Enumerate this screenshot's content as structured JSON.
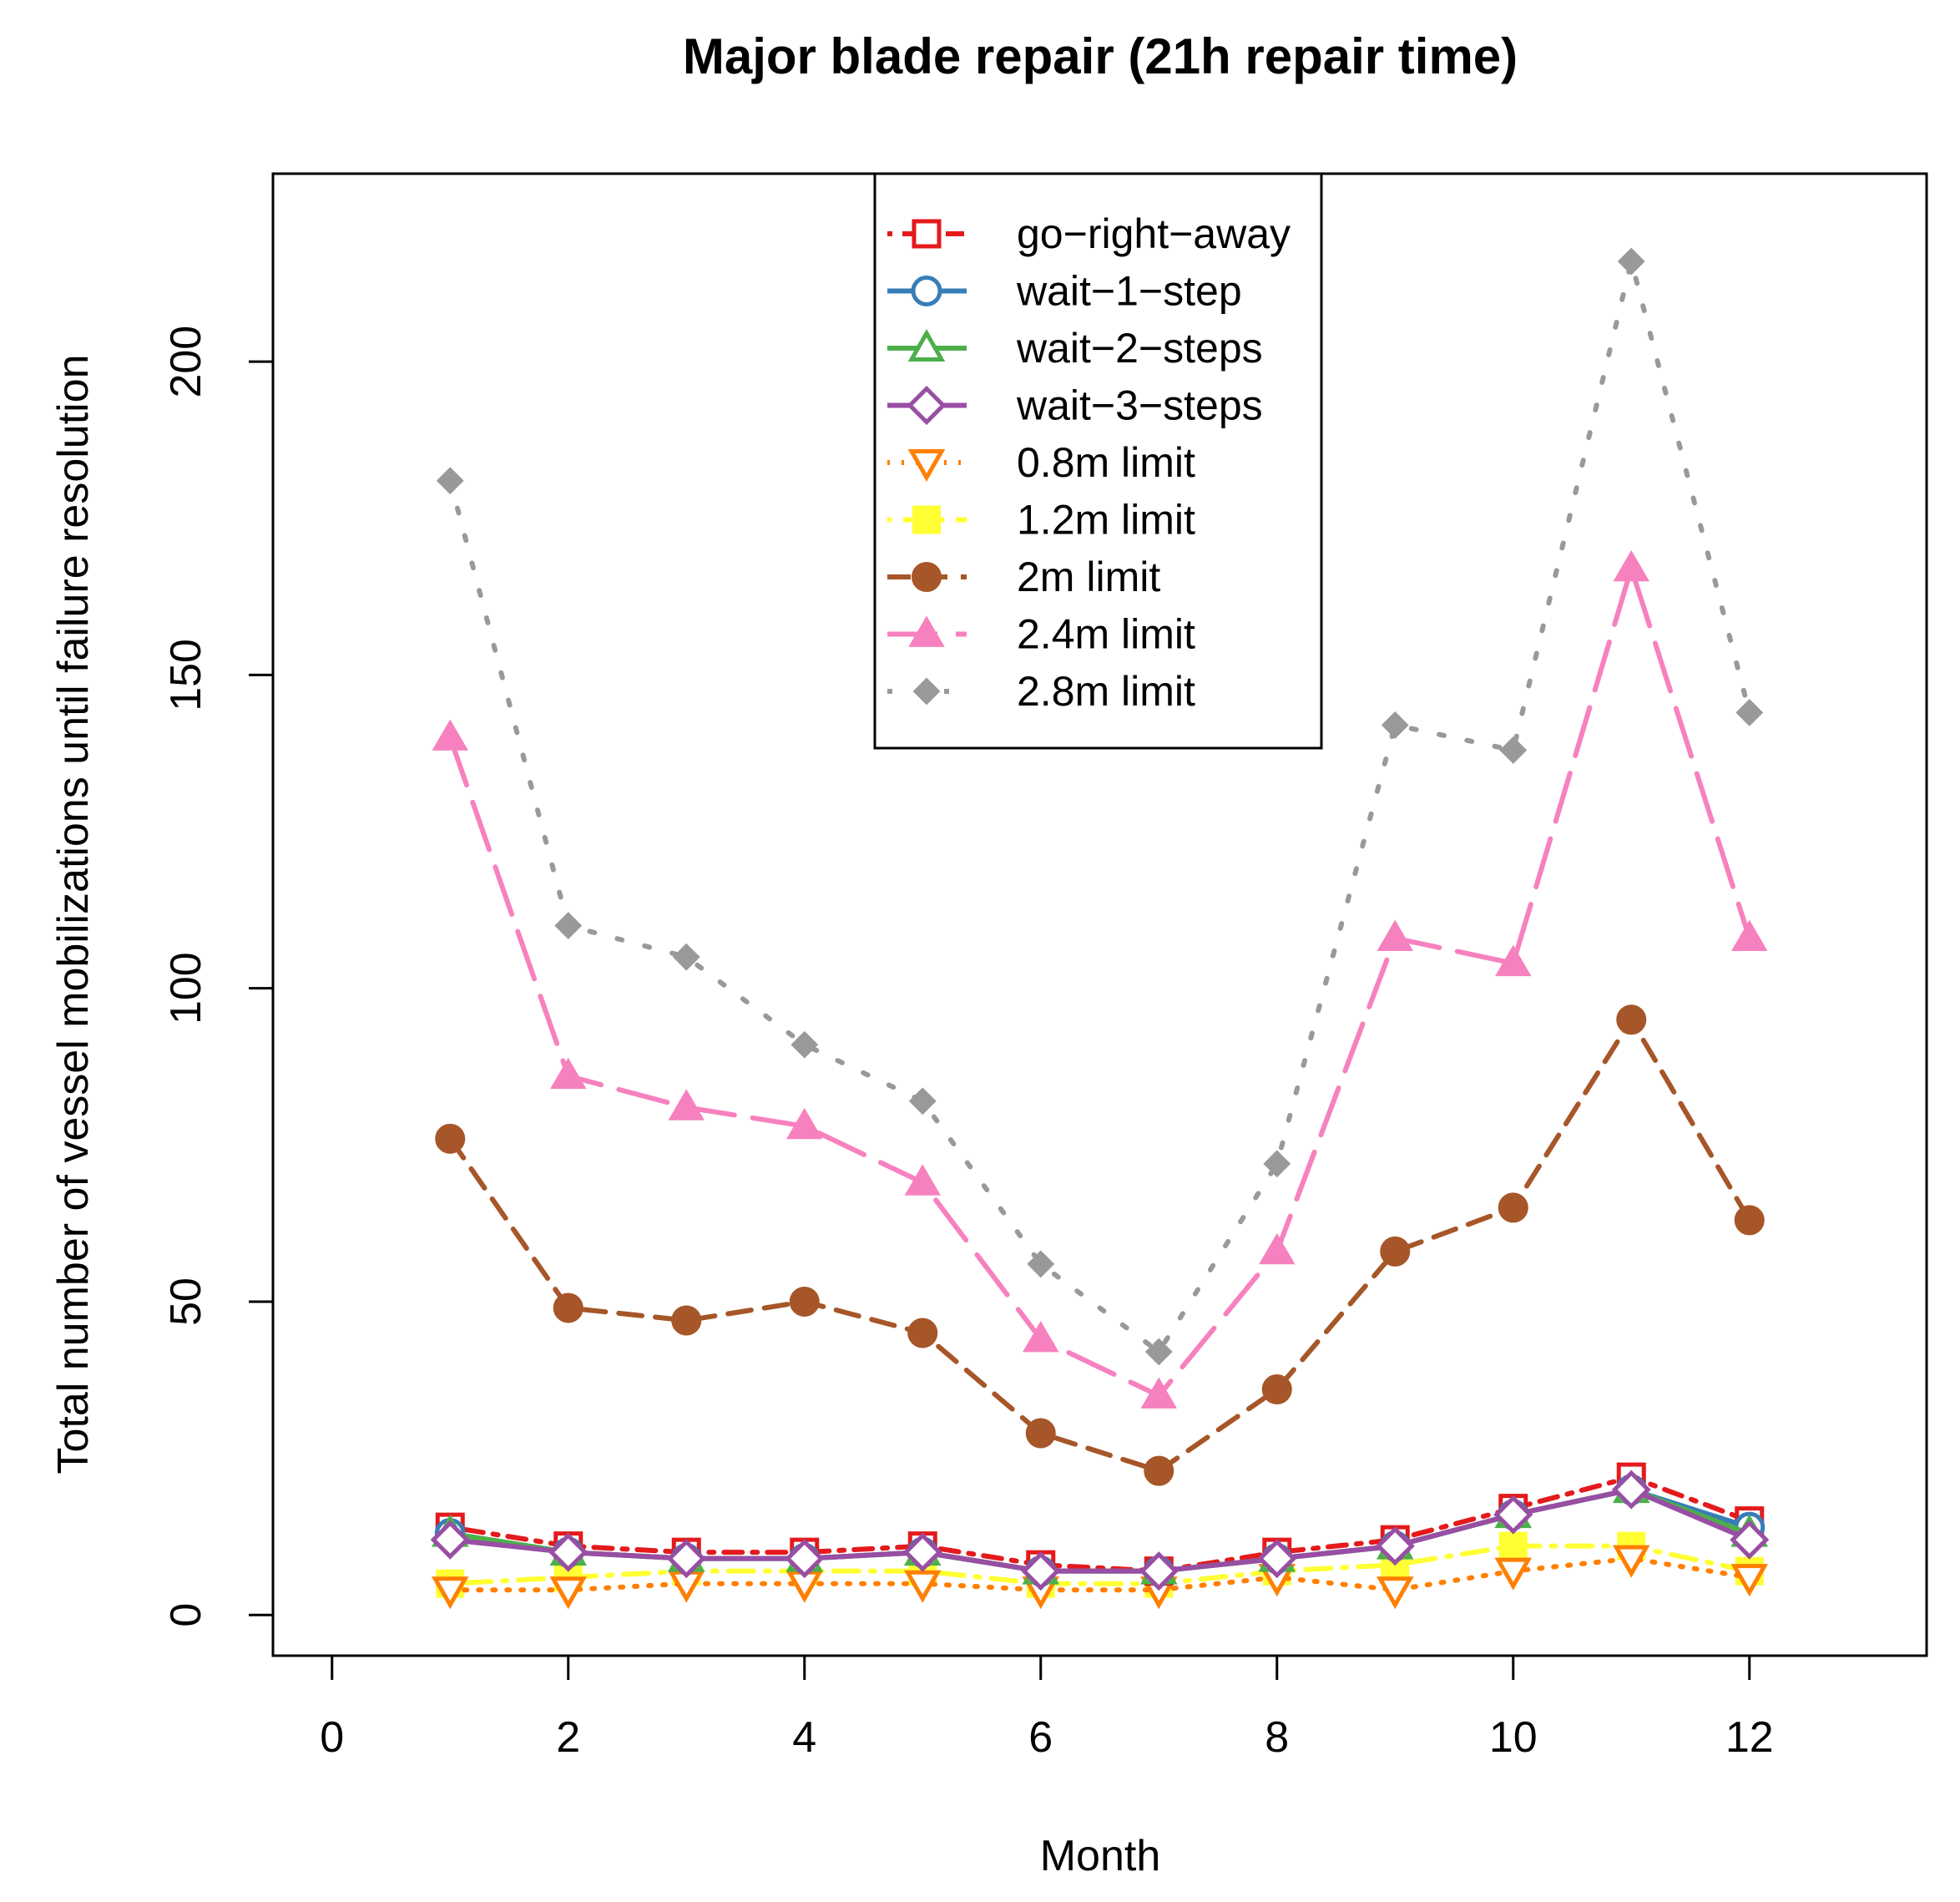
{
  "chart_data": {
    "type": "line",
    "title": "Major blade repair (21h repair time)",
    "xlabel": "Month",
    "ylabel": "Total number of vessel mobilizations until failure resolution",
    "xlim": [
      -0.5,
      13.5
    ],
    "ylim": [
      -6.5,
      230
    ],
    "xticks": [
      "0",
      "2",
      "4",
      "6",
      "8",
      "10",
      "12"
    ],
    "yticks": [
      "0",
      "50",
      "100",
      "150",
      "200"
    ],
    "legend_position": "top-center",
    "x": [
      1,
      2,
      3,
      4,
      5,
      6,
      7,
      8,
      9,
      10,
      11,
      12
    ],
    "series": [
      {
        "name": "go−right−away",
        "color": "#e41a1c",
        "marker": "square-open",
        "dash": "dotted-dash",
        "values": [
          14,
          11,
          10,
          10,
          11,
          8,
          7,
          10,
          12,
          17,
          22,
          15
        ]
      },
      {
        "name": "wait−1−step",
        "color": "#377eb8",
        "marker": "circle-open",
        "dash": "solid",
        "values": [
          13,
          10,
          9,
          9,
          10,
          7,
          7,
          9,
          11,
          16,
          20,
          14
        ]
      },
      {
        "name": "wait−2−steps",
        "color": "#4daf4a",
        "marker": "triangle-open",
        "dash": "solid",
        "values": [
          13,
          10,
          9,
          9,
          10,
          7,
          7,
          9,
          11,
          16,
          20,
          13
        ]
      },
      {
        "name": "wait−3−steps",
        "color": "#984ea3",
        "marker": "diamond-open",
        "dash": "solid",
        "values": [
          12,
          10,
          9,
          9,
          10,
          7,
          7,
          9,
          11,
          16,
          20,
          12
        ]
      },
      {
        "name": "0.8m limit",
        "color": "#ff7f00",
        "marker": "triangle-down-open",
        "dash": "dotted",
        "values": [
          4,
          4,
          5,
          5,
          5,
          4,
          4,
          6,
          4,
          7,
          9,
          6
        ]
      },
      {
        "name": "1.2m limit",
        "color": "#ffff33",
        "marker": "square-filled",
        "dash": "dot-dash",
        "values": [
          5,
          6,
          7,
          7,
          7,
          5,
          5,
          7,
          8,
          11,
          11,
          7
        ]
      },
      {
        "name": "2m limit",
        "color": "#a65628",
        "marker": "circle-filled",
        "dash": "dashed",
        "values": [
          76,
          49,
          47,
          50,
          45,
          29,
          23,
          36,
          58,
          65,
          95,
          63
        ]
      },
      {
        "name": "2.4m limit",
        "color": "#f781bf",
        "marker": "triangle-filled",
        "dash": "long-dash",
        "values": [
          140,
          86,
          81,
          78,
          69,
          44,
          35,
          58,
          108,
          104,
          167,
          108
        ]
      },
      {
        "name": "2.8m limit",
        "color": "#999999",
        "marker": "diamond-filled",
        "dash": "sparse-dotted",
        "values": [
          181,
          110,
          105,
          91,
          82,
          56,
          42,
          72,
          142,
          138,
          216,
          144
        ]
      }
    ]
  }
}
